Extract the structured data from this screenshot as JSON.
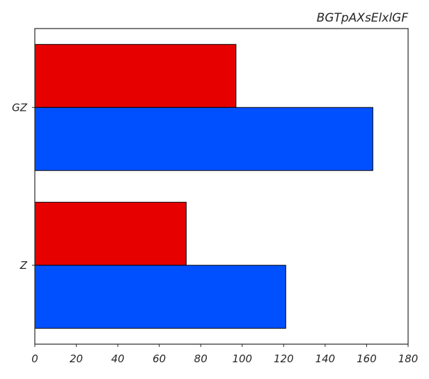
{
  "chart_data": {
    "type": "bar",
    "orientation": "horizontal",
    "title": "BGTpAXsElxlGF",
    "title_position": "top-right",
    "categories": [
      "GZ",
      "Z"
    ],
    "series": [
      {
        "color": "#e60000",
        "values": [
          97,
          73
        ]
      },
      {
        "color": "#0050ff",
        "values": [
          163,
          121
        ]
      }
    ],
    "xlim": [
      0,
      180
    ],
    "xticks": [
      0,
      20,
      40,
      60,
      80,
      100,
      120,
      140,
      160,
      180
    ],
    "xlabel": "",
    "ylabel": "",
    "grid": false,
    "legend": "none"
  }
}
